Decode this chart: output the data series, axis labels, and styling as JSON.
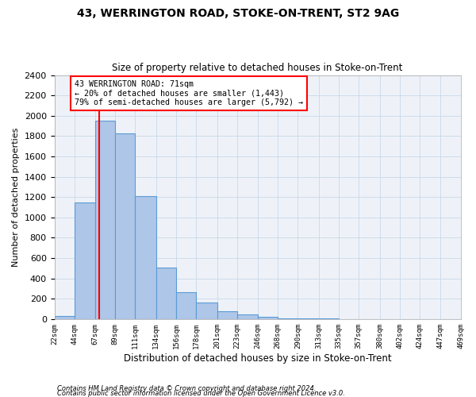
{
  "title1": "43, WERRINGTON ROAD, STOKE-ON-TRENT, ST2 9AG",
  "title2": "Size of property relative to detached houses in Stoke-on-Trent",
  "xlabel": "Distribution of detached houses by size in Stoke-on-Trent",
  "ylabel": "Number of detached properties",
  "bar_edges": [
    22,
    44,
    67,
    89,
    111,
    134,
    156,
    178,
    201,
    223,
    246,
    268,
    290,
    313,
    335,
    357,
    380,
    402,
    424,
    447,
    469
  ],
  "bar_heights": [
    30,
    1150,
    1950,
    1830,
    1210,
    510,
    265,
    160,
    80,
    45,
    25,
    10,
    5,
    3,
    2,
    2,
    1,
    1,
    1,
    1
  ],
  "bar_color": "#aec6e8",
  "bar_edge_color": "#5b9bd5",
  "bar_linewidth": 0.8,
  "grid_color": "#c8d8e8",
  "bg_color": "#eef2f8",
  "red_line_x": 71,
  "annotation_text": "43 WERRINGTON ROAD: 71sqm\n← 20% of detached houses are smaller (1,443)\n79% of semi-detached houses are larger (5,792) →",
  "ylim": [
    0,
    2400
  ],
  "yticks": [
    0,
    200,
    400,
    600,
    800,
    1000,
    1200,
    1400,
    1600,
    1800,
    2000,
    2200,
    2400
  ],
  "footnote1": "Contains HM Land Registry data © Crown copyright and database right 2024.",
  "footnote2": "Contains public sector information licensed under the Open Government Licence v3.0."
}
